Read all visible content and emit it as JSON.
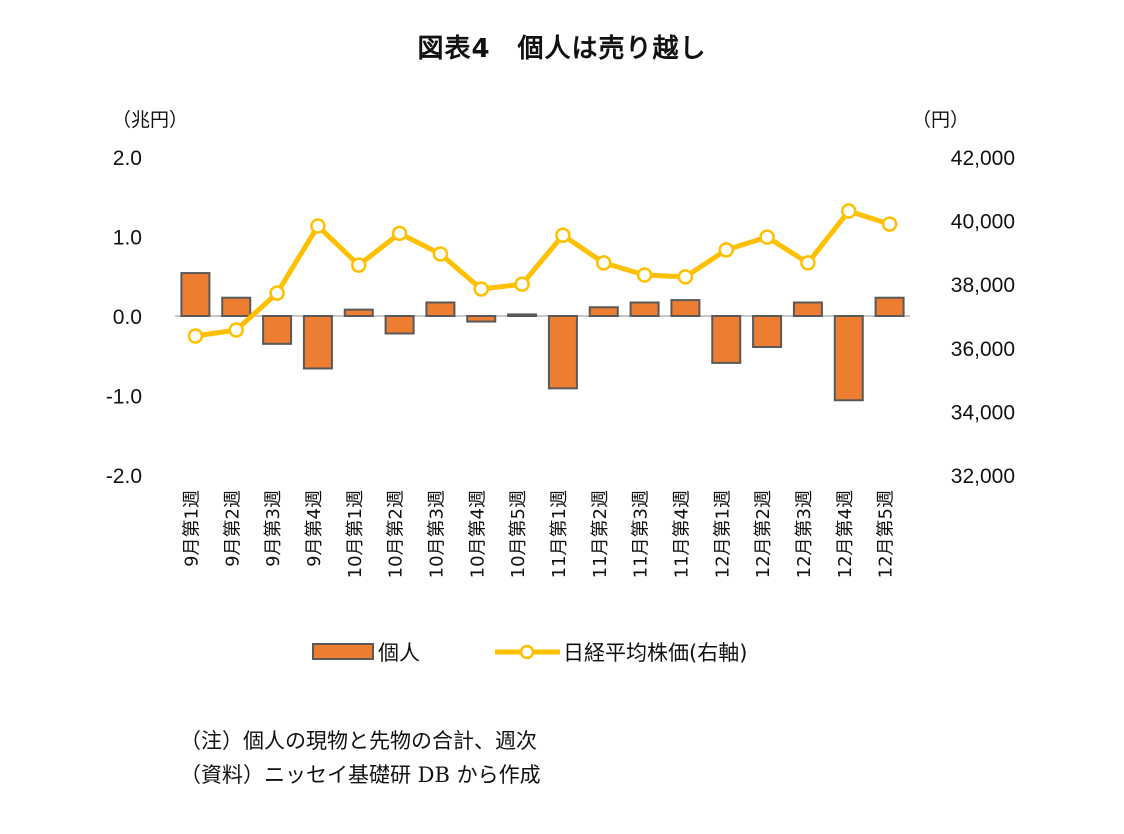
{
  "chart_data": {
    "type": "bar",
    "title": "図表4　個人は売り越し",
    "categories": [
      "9月第1週",
      "9月第2週",
      "9月第3週",
      "9月第4週",
      "10月第1週",
      "10月第2週",
      "10月第3週",
      "10月第4週",
      "10月第5週",
      "11月第1週",
      "11月第2週",
      "11月第3週",
      "11月第4週",
      "12月第1週",
      "12月第2週",
      "12月第3週",
      "12月第4週",
      "12月第5週"
    ],
    "series": [
      {
        "name": "個人",
        "type": "bar",
        "axis": "left",
        "color": "#ED7D31",
        "border": "#595959",
        "values": [
          0.54,
          0.23,
          -0.35,
          -0.66,
          0.08,
          -0.22,
          0.17,
          -0.07,
          0.02,
          -0.91,
          0.11,
          0.17,
          0.2,
          -0.59,
          -0.39,
          0.17,
          -1.06,
          0.23
        ]
      },
      {
        "name": "日経平均株価(右軸)",
        "type": "line",
        "axis": "right",
        "color": "#FFC000",
        "values": [
          36370,
          36560,
          37720,
          39830,
          38600,
          39600,
          38950,
          37850,
          38000,
          39540,
          38670,
          38290,
          38230,
          39080,
          39480,
          38670,
          40300,
          39890
        ]
      }
    ],
    "left_axis": {
      "unit": "（兆円）",
      "ylim": [
        -2.0,
        2.0
      ],
      "ticks": [
        "2.0",
        "1.0",
        "0.0",
        "-1.0",
        "-2.0"
      ],
      "tick_values": [
        2,
        1,
        0,
        -1,
        -2
      ]
    },
    "right_axis": {
      "unit": "（円）",
      "ylim": [
        32000,
        42000
      ],
      "ticks": [
        "42,000",
        "40,000",
        "38,000",
        "36,000",
        "34,000",
        "32,000"
      ],
      "tick_values": [
        42000,
        40000,
        38000,
        36000,
        34000,
        32000
      ]
    },
    "grid": false,
    "legend_position": "bottom",
    "legend": [
      "個人",
      "日経平均株価(右軸)"
    ]
  },
  "notes": {
    "note": "（注）個人の現物と先物の合計、週次",
    "source": "（資料）ニッセイ基礎研 DB から作成"
  }
}
